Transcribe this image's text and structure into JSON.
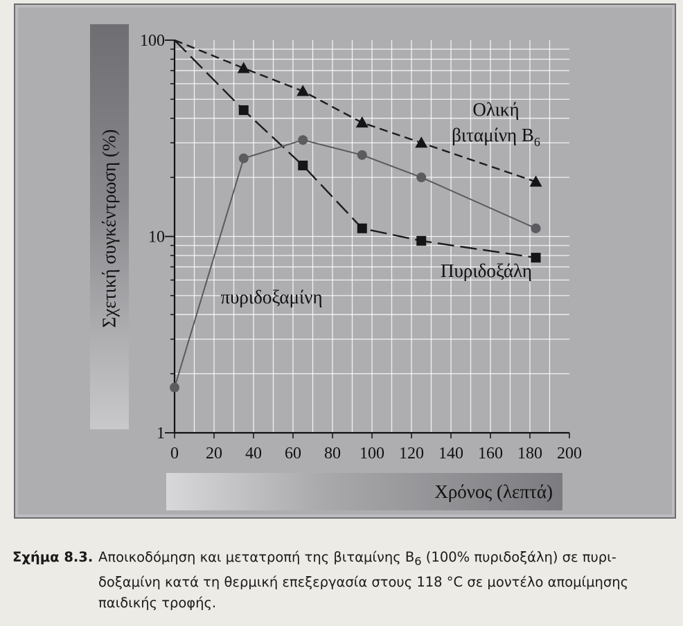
{
  "chart_data": {
    "type": "line",
    "x": [
      0,
      35,
      65,
      95,
      125,
      183
    ],
    "series": [
      {
        "name": "Ολική βιταμίνη B6",
        "label_lines": [
          "Ολική",
          "βιταμίνη B"
        ],
        "label_sub": "6",
        "marker": "triangle",
        "dash": "dashed",
        "x": [
          0,
          35,
          65,
          95,
          125,
          183
        ],
        "values": [
          100,
          72,
          55,
          38,
          30,
          19
        ]
      },
      {
        "name": "Πυριδοξάλη",
        "label_lines": [
          "Πυριδοξάλη"
        ],
        "label_sub": "",
        "marker": "square",
        "dash": "longdash",
        "x": [
          0,
          35,
          65,
          95,
          125,
          183
        ],
        "values": [
          100,
          44,
          23,
          11,
          9.5,
          7.8
        ]
      },
      {
        "name": "πυριδοξαμίνη",
        "label_lines": [
          "πυριδοξαμίνη"
        ],
        "label_sub": "",
        "marker": "circle",
        "dash": "solid",
        "x": [
          0,
          35,
          65,
          95,
          125,
          183
        ],
        "values": [
          1.7,
          25,
          31,
          26,
          20,
          11
        ]
      }
    ],
    "xlabel": "Χρόνος (λεπτά)",
    "ylabel": "Σχετική συγκέντρωση (%)",
    "xticks": [
      0,
      20,
      40,
      60,
      80,
      100,
      120,
      140,
      160,
      180,
      200
    ],
    "xlim": [
      0,
      200
    ],
    "yticks": [
      1,
      10,
      100
    ],
    "ylim": [
      1,
      100
    ],
    "yscale": "log",
    "grid": true,
    "colors": {
      "panel": "#aeadb0",
      "line_dark": "#1b1b1d",
      "line_gray": "#5a595c",
      "grid": "#ffffff"
    }
  },
  "caption": {
    "label": "Σχήμα 8.3.",
    "line1_pre": "Αποικοδόμηση και μετατροπή της βιταμίνης Β",
    "line1_sub": "6",
    "line1_post": " (100% πυριδοξάλη) σε πυρι-",
    "line2": "δοξαμίνη κατά τη θερμική επεξεργασία στους 118 °C σε μοντέλο απομίμησης",
    "line3": "παιδικής τροφής."
  }
}
